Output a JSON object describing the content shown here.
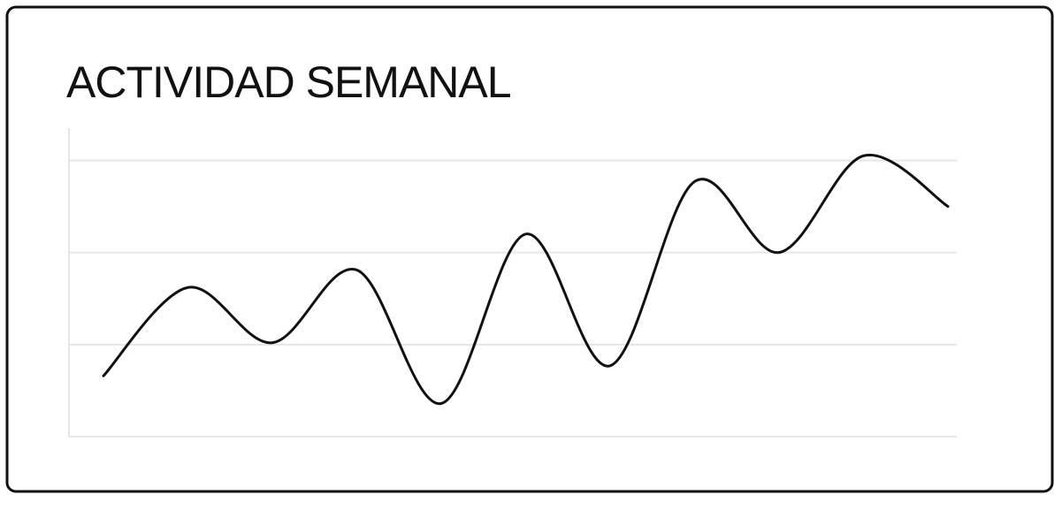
{
  "chart_data": {
    "type": "line",
    "title": "ACTIVIDAD SEMANAL",
    "categories": [
      null,
      null,
      null,
      null,
      null,
      null,
      null,
      null,
      null,
      null,
      null
    ],
    "series": [
      {
        "color": "#111111",
        "values": [
          0.66,
          1.62,
          1.02,
          1.81,
          0.36,
          2.2,
          0.77,
          2.77,
          2.0,
          3.05,
          2.5
        ]
      }
    ],
    "ylim": [
      0,
      3.35
    ],
    "yticks": [
      0,
      1,
      2,
      3
    ],
    "grid": true
  }
}
